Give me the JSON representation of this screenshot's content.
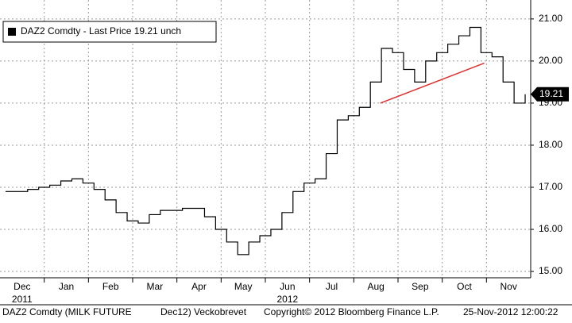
{
  "chart_data": {
    "type": "line",
    "series": [
      {
        "name": "DAZ2 Comdty - Last Price 19.21  unch",
        "color": "#000000",
        "x": [
          0.125,
          0.375,
          0.625,
          0.875,
          1.125,
          1.375,
          1.625,
          1.875,
          2.125,
          2.375,
          2.625,
          2.875,
          3.125,
          3.375,
          3.625,
          3.875,
          4.125,
          4.375,
          4.625,
          4.875,
          5.125,
          5.375,
          5.625,
          5.875,
          6.125,
          6.375,
          6.625,
          6.875,
          7.125,
          7.375,
          7.625,
          7.875,
          8.125,
          8.375,
          8.625,
          8.875,
          9.125,
          9.375,
          9.625,
          9.875,
          10.125,
          10.375,
          10.625,
          10.875,
          11.125,
          11.375,
          11.625,
          11.875
        ],
        "values": [
          16.9,
          16.9,
          16.95,
          17.0,
          17.05,
          17.15,
          17.2,
          17.1,
          16.95,
          16.7,
          16.4,
          16.2,
          16.15,
          16.35,
          16.45,
          16.45,
          16.5,
          16.5,
          16.3,
          16.0,
          15.7,
          15.4,
          15.7,
          15.85,
          16.0,
          16.4,
          16.9,
          17.1,
          17.2,
          17.8,
          18.6,
          18.7,
          18.9,
          19.5,
          20.3,
          20.2,
          19.8,
          19.5,
          20.0,
          20.2,
          20.4,
          20.6,
          20.8,
          20.2,
          20.1,
          19.5,
          19.0,
          19.21
        ]
      }
    ],
    "trendline": {
      "x": [
        8.6,
        10.95
      ],
      "y": [
        19.0,
        19.95
      ],
      "color": "#e03030"
    },
    "xlim": [
      0,
      12
    ],
    "xticks": [
      {
        "value": 0.5,
        "label": "Dec"
      },
      {
        "value": 1.5,
        "label": "Jan"
      },
      {
        "value": 2.5,
        "label": "Feb"
      },
      {
        "value": 3.5,
        "label": "Mar"
      },
      {
        "value": 4.5,
        "label": "Apr"
      },
      {
        "value": 5.5,
        "label": "May"
      },
      {
        "value": 6.5,
        "label": "Jun"
      },
      {
        "value": 7.5,
        "label": "Jul"
      },
      {
        "value": 8.5,
        "label": "Aug"
      },
      {
        "value": 9.5,
        "label": "Sep"
      },
      {
        "value": 10.5,
        "label": "Oct"
      },
      {
        "value": 11.5,
        "label": "Nov"
      }
    ],
    "x_year_labels": [
      {
        "value": 0.5,
        "label": "2011"
      },
      {
        "value": 6.5,
        "label": "2012"
      }
    ],
    "ylim": [
      14.85,
      21.45
    ],
    "yticks": [
      {
        "value": 15,
        "label": "15.00"
      },
      {
        "value": 16,
        "label": "16.00"
      },
      {
        "value": 17,
        "label": "17.00"
      },
      {
        "value": 18,
        "label": "18.00"
      },
      {
        "value": 19,
        "label": "19.00"
      },
      {
        "value": 20,
        "label": "20.00"
      },
      {
        "value": 21,
        "label": "21.00"
      }
    ],
    "grid": true,
    "legend": "top-left",
    "footer": [
      "DAZ2 Comdty (MILK FUTURE",
      "Dec12) Veckobrevet",
      "Copyright© 2012 Bloomberg Finance L.P.",
      "25-Nov-2012 12:00:22"
    ]
  }
}
